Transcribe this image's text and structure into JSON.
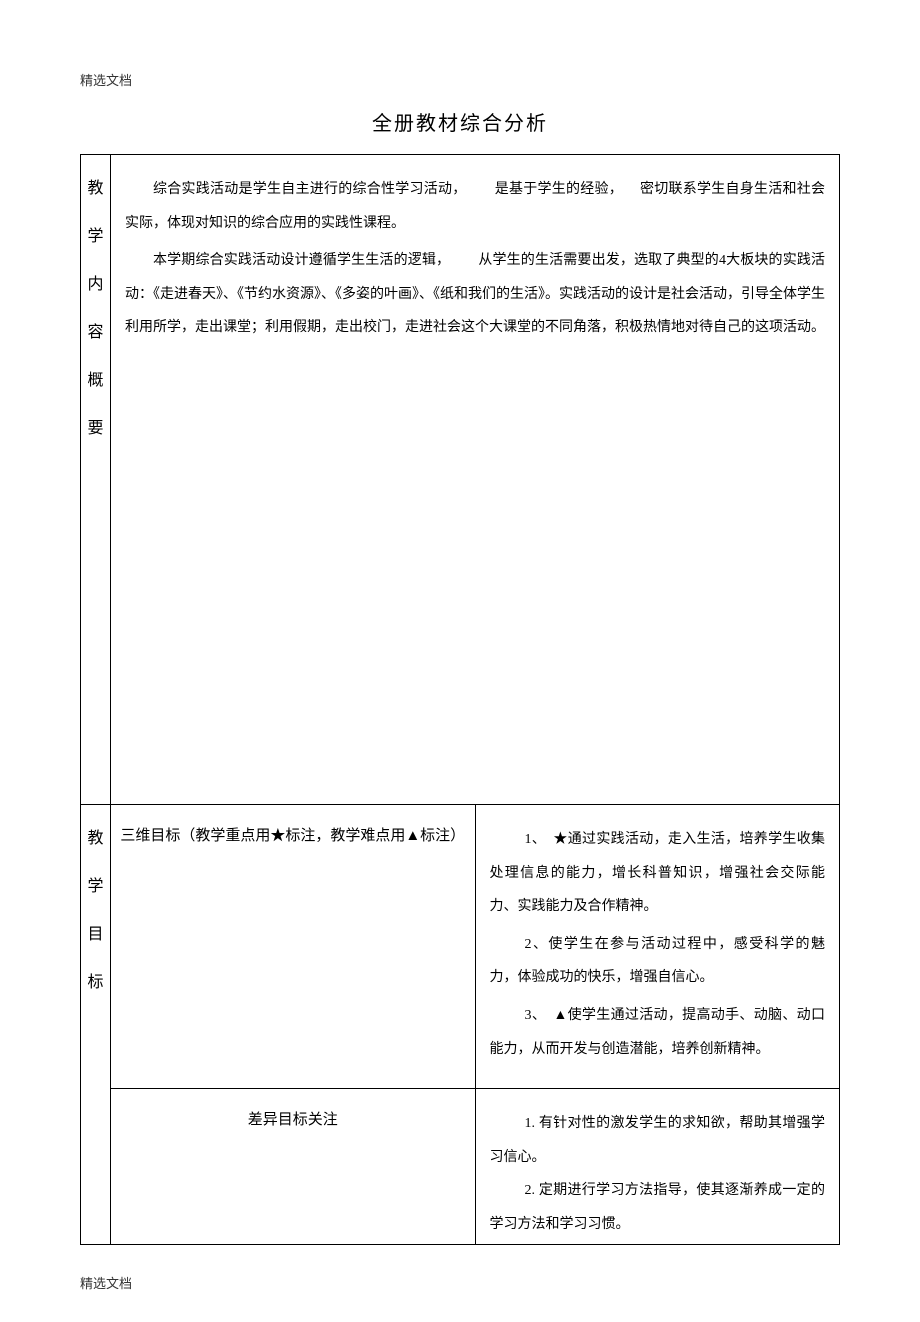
{
  "header": "精选文档",
  "footer": "精选文档",
  "title": "全册教材综合分析",
  "section1": {
    "label_chars": [
      "教",
      "学",
      "内",
      "容",
      "概",
      "要"
    ],
    "para1_a": "综合实践活动是学生自主进行的综合性学习活动，",
    "para1_b": "是基于学生的经验，",
    "para1_c": "密切联系学生自身生活和社会实际，体现对知识的综合应用的实践性课程。",
    "para2_a": "本学期综合实践活动设计遵循学生生活的逻辑，",
    "para2_b": "从学生的生活需要出发，选取了典型的4大板块的实践活动：《走进春天》、《节约水资源》、《多姿的叶画》、《纸和我们的生活》。实践活动的设计是社会活动，引导全体学生利用所学，走出课堂；利用假期，走出校门，走进社会这个大课堂的不同角落，积极热情地对待自己的这项活动。"
  },
  "section2": {
    "label_chars": [
      "教",
      "学",
      "目",
      "标"
    ],
    "sub1_label": "三维目标（教学重点用★标注，教学难点用▲标注）",
    "sub1_item1": "1、　★通过实践活动，走入生活，培养学生收集处理信息的能力，增长科普知识，增强社会交际能力、实践能力及合作精神。",
    "sub1_item2": "2、使学生在参与活动过程中，感受科学的魅力，体验成功的快乐，增强自信心。",
    "sub1_item3": "3、　▲使学生通过活动，提高动手、动脑、动口能力，从而开发与创造潜能，培养创新精神。",
    "sub2_label": "差异目标关注",
    "sub2_item1": "1. 有针对性的激发学生的求知欲，帮助其增强学习信心。",
    "sub2_item2": "2. 定期进行学习方法指导，使其逐渐养成一定的学习方法和学习习惯。"
  }
}
